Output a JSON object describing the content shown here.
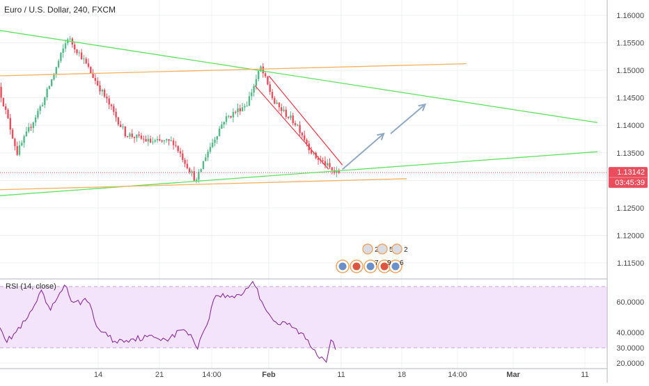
{
  "chart_title": "Euro / U.S. Dollar, 240, FXCM",
  "indicator_label": "RSI (14, close)",
  "colors": {
    "up": "#53b987",
    "down": "#eb4d5c",
    "trend_green": "#5ce35c",
    "trend_orange": "#f7b05b",
    "channel_red": "#f23645",
    "arrow": "#8fa9c4",
    "rsi_line": "#8a2b9e",
    "rsi_band_fill": "#f3e3fb",
    "grid": "#eef0f3",
    "price_tag_bg": "#eb4d5c"
  },
  "chart_data": [
    {
      "type": "candlestick",
      "title": "Euro / U.S. Dollar, 240, FXCM",
      "x_tick_labels": [
        "14",
        "21",
        "14:00",
        "Feb",
        "11",
        "18",
        "14:00",
        "Mar",
        "11"
      ],
      "y_tick_labels": [
        "1.16000",
        "1.15500",
        "1.15000",
        "1.14500",
        "1.14000",
        "1.13500",
        "1.13000",
        "1.12500",
        "1.12000",
        "1.11500"
      ],
      "ylim": [
        1.113,
        1.1625
      ],
      "bar_count": 148,
      "anchors": [
        [
          0,
          1.147
        ],
        [
          8,
          1.135
        ],
        [
          20,
          1.145
        ],
        [
          30,
          1.156
        ],
        [
          36,
          1.1525
        ],
        [
          45,
          1.146
        ],
        [
          55,
          1.1385
        ],
        [
          66,
          1.137
        ],
        [
          76,
          1.137
        ],
        [
          86,
          1.1298
        ],
        [
          90,
          1.1345
        ],
        [
          98,
          1.141
        ],
        [
          108,
          1.144
        ],
        [
          114,
          1.1505
        ],
        [
          120,
          1.144
        ],
        [
          130,
          1.14
        ],
        [
          137,
          1.1345
        ],
        [
          142,
          1.133
        ],
        [
          146,
          1.1314
        ]
      ],
      "last_price": "1.13142",
      "countdown": "03:45:39",
      "trendlines": [
        {
          "name": "upper-green-trendline",
          "color": "green",
          "from": [
            -4,
            1.1575
          ],
          "to": [
            260,
            1.1405
          ]
        },
        {
          "name": "lower-green-trendline",
          "color": "green",
          "from": [
            -4,
            1.1271
          ],
          "to": [
            260,
            1.1352
          ]
        },
        {
          "name": "upper-orange-line",
          "color": "orange",
          "from": [
            0,
            1.149
          ],
          "to": [
            203,
            1.1512
          ]
        },
        {
          "name": "lower-orange-line",
          "color": "orange",
          "from": [
            0,
            1.1283
          ],
          "to": [
            177,
            1.1303
          ]
        }
      ],
      "channel": {
        "upper_from": [
          117,
          1.149
        ],
        "upper_to": [
          149,
          1.1328
        ],
        "lower_from": [
          111,
          1.1472
        ],
        "lower_to": [
          143,
          1.132
        ]
      },
      "arrows": [
        {
          "from": [
            149,
            1.132
          ],
          "to": [
            167,
            1.1385
          ]
        },
        {
          "from": [
            170,
            1.1385
          ],
          "to": [
            185,
            1.1438
          ]
        }
      ],
      "event_icons": {
        "row1": [
          "2",
          "5",
          "2"
        ],
        "row2": [
          "7",
          "9",
          "6"
        ]
      }
    },
    {
      "type": "line",
      "title": "RSI (14, close)",
      "y_tick_labels": [
        "60.0000",
        "40.0000",
        "30.0000",
        "20.0000"
      ],
      "ylim": [
        17,
        76
      ],
      "band": [
        30,
        70
      ],
      "anchors": [
        [
          0,
          45
        ],
        [
          3,
          34
        ],
        [
          8,
          42
        ],
        [
          12,
          49
        ],
        [
          18,
          66
        ],
        [
          22,
          54
        ],
        [
          28,
          72
        ],
        [
          32,
          58
        ],
        [
          38,
          62
        ],
        [
          42,
          44
        ],
        [
          50,
          34
        ],
        [
          58,
          36
        ],
        [
          66,
          37
        ],
        [
          74,
          36
        ],
        [
          80,
          43
        ],
        [
          86,
          31
        ],
        [
          90,
          46
        ],
        [
          94,
          65
        ],
        [
          100,
          63
        ],
        [
          106,
          66
        ],
        [
          110,
          74
        ],
        [
          114,
          60
        ],
        [
          120,
          46
        ],
        [
          126,
          45
        ],
        [
          132,
          38
        ],
        [
          138,
          26
        ],
        [
          142,
          22
        ],
        [
          144,
          37
        ],
        [
          146,
          30
        ]
      ]
    }
  ]
}
